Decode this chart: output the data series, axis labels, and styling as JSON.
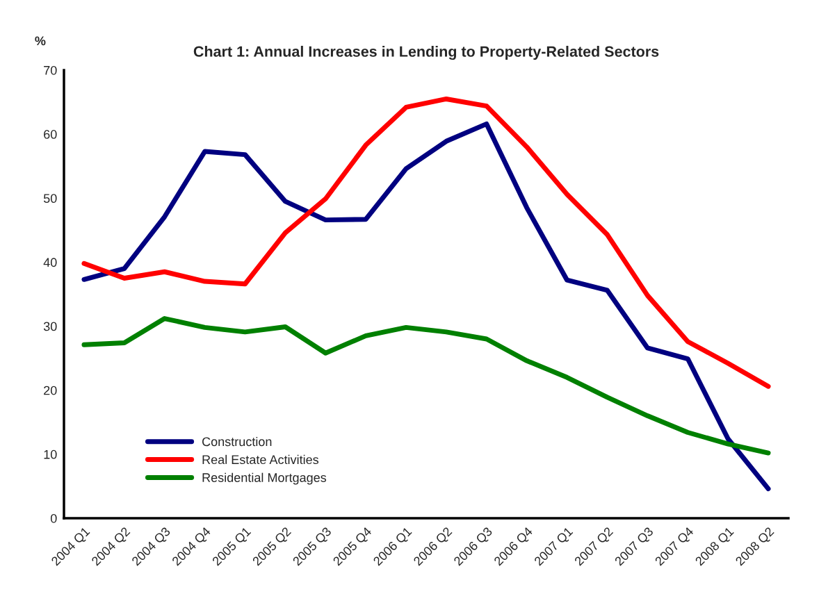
{
  "chart_data": {
    "type": "line",
    "title": "Chart 1: Annual Increases in Lending to Property-Related Sectors",
    "ylabel": "%",
    "categories": [
      "2004 Q1",
      "2004 Q2",
      "2004 Q3",
      "2004 Q4",
      "2005 Q1",
      "2005 Q2",
      "2005 Q3",
      "2005 Q4",
      "2006 Q1",
      "2006 Q2",
      "2006 Q3",
      "2006 Q4",
      "2007 Q1",
      "2007 Q2",
      "2007 Q3",
      "2007 Q4",
      "2008 Q1",
      "2008 Q2"
    ],
    "series": [
      {
        "name": "Construction",
        "color": "#000080",
        "values": [
          37.3,
          39.0,
          47.1,
          57.3,
          56.8,
          49.5,
          46.6,
          46.7,
          54.6,
          58.9,
          61.6,
          48.5,
          37.2,
          35.6,
          26.6,
          24.9,
          12.4,
          4.6
        ]
      },
      {
        "name": "Real Estate Activities",
        "color": "#ff0000",
        "values": [
          39.8,
          37.5,
          38.5,
          37.0,
          36.6,
          44.6,
          49.9,
          58.3,
          64.2,
          65.5,
          64.4,
          58.0,
          50.6,
          44.3,
          34.8,
          27.6,
          24.2,
          20.6
        ]
      },
      {
        "name": "Residential Mortgages",
        "color": "#008000",
        "values": [
          27.1,
          27.4,
          31.2,
          29.8,
          29.1,
          29.9,
          25.8,
          28.5,
          29.8,
          29.1,
          28.0,
          24.6,
          22.0,
          18.9,
          16.0,
          13.4,
          11.6,
          10.2
        ]
      }
    ],
    "ylim": [
      0,
      70
    ],
    "yticks": [
      0,
      10,
      20,
      30,
      40,
      50,
      60,
      70
    ],
    "grid": false,
    "legend": "bottom left",
    "marker": "none",
    "line_style": "solid"
  }
}
